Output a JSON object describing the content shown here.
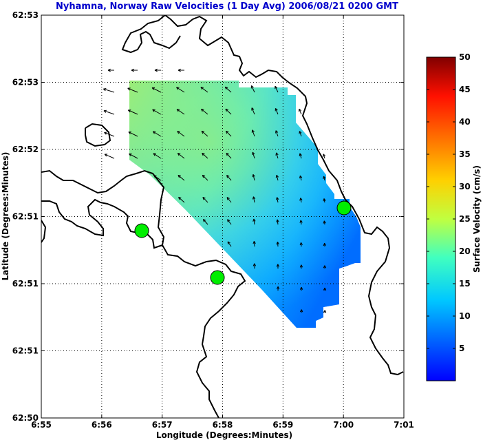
{
  "chart_data": [
    {
      "type": "vector-field",
      "title": "Nyhamna, Norway Raw Velocities (1 Day Avg) 2006/08/21 0200 GMT",
      "xlabel": "Longitude (Degrees:Minutes)",
      "ylabel": "Latitude (Degrees:Minutes)",
      "x_tick_labels": [
        "6:55",
        "6:56",
        "6:57",
        "6:58",
        "6:59",
        "7:00",
        "7:01"
      ],
      "y_tick_labels": [
        "62:50",
        "62:51",
        "62:51",
        "62:51",
        "62:52",
        "62:53",
        "62:53"
      ],
      "grid": true,
      "stations": [
        "station-west",
        "station-south",
        "station-east"
      ],
      "field_note": "surface current speed shaded 0-50 cm/s; vectors trend northwest in the north, weak and northward in the southeast"
    },
    {
      "type": "colorbar",
      "label": "Surface Velocity (cm/s)",
      "ticks": [
        5,
        10,
        15,
        20,
        25,
        30,
        35,
        40,
        45,
        50
      ],
      "range": [
        0,
        50
      ],
      "colormap": [
        "#0000ff",
        "#00bfff",
        "#40ffbf",
        "#bfff40",
        "#ffbf00",
        "#ff4000",
        "#800000"
      ]
    }
  ],
  "colors": {
    "title": "#0000cc",
    "coastline": "#000000",
    "station": "#00ee00"
  }
}
